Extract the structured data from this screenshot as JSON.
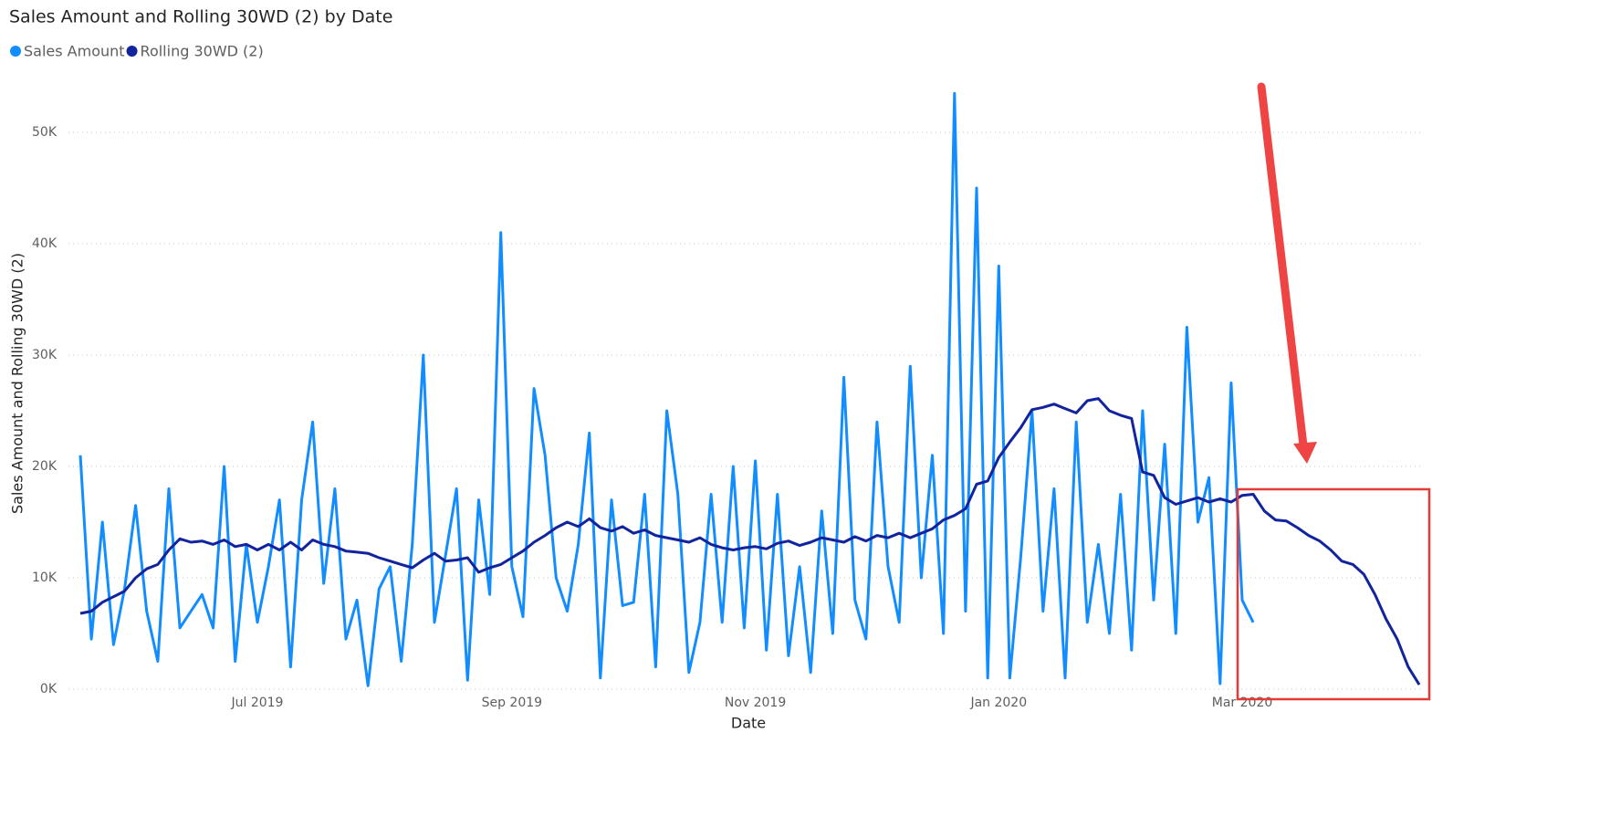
{
  "chart_data": {
    "type": "line",
    "title": "Sales Amount and Rolling 30WD (2) by Date",
    "x_label": "Date",
    "y_label": "Sales Amount and Rolling 30WD (2)",
    "categories": [
      null,
      null,
      null,
      null,
      null,
      null,
      null,
      null,
      null,
      null,
      null,
      null,
      null,
      null,
      null,
      null,
      "Jul 2019",
      null,
      null,
      null,
      null,
      null,
      null,
      null,
      null,
      null,
      null,
      null,
      null,
      null,
      null,
      null,
      null,
      null,
      null,
      null,
      null,
      null,
      null,
      "Sep 2019",
      null,
      null,
      null,
      null,
      null,
      null,
      null,
      null,
      null,
      null,
      null,
      null,
      null,
      null,
      null,
      null,
      null,
      null,
      null,
      null,
      null,
      "Nov 2019",
      null,
      null,
      null,
      null,
      null,
      null,
      null,
      null,
      null,
      null,
      null,
      null,
      null,
      null,
      null,
      null,
      null,
      null,
      null,
      null,
      null,
      "Jan 2020",
      null,
      null,
      null,
      null,
      null,
      null,
      null,
      null,
      null,
      null,
      null,
      null,
      null,
      null,
      null,
      null,
      null,
      null,
      null,
      null,
      null,
      "Mar 2020",
      null,
      null,
      null,
      null,
      null,
      null,
      null,
      null,
      null,
      null,
      null,
      null,
      null,
      null,
      null,
      null
    ],
    "series": [
      {
        "name": "Sales Amount",
        "color": "#118DFF",
        "values": [
          21000,
          4500,
          15000,
          4000,
          9000,
          16500,
          7000,
          2500,
          18000,
          5500,
          7000,
          8500,
          5500,
          20000,
          2500,
          13000,
          6000,
          11000,
          17000,
          2000,
          17000,
          24000,
          9500,
          18000,
          4500,
          8000,
          300,
          9000,
          11000,
          2500,
          13000,
          30000,
          6000,
          12000,
          18000,
          800,
          17000,
          8500,
          41000,
          11000,
          6500,
          27000,
          21000,
          10000,
          7000,
          13000,
          23000,
          1000,
          17000,
          7500,
          7800,
          17500,
          2000,
          25000,
          17500,
          1500,
          6000,
          17500,
          6000,
          20000,
          5500,
          20500,
          3500,
          17500,
          3000,
          11000,
          1500,
          16000,
          5000,
          28000,
          8000,
          4500,
          24000,
          11000,
          6000,
          29000,
          10000,
          21000,
          5000,
          53500,
          7000,
          45000,
          1000,
          38000,
          1000,
          12000,
          25000,
          7000,
          18000,
          1000,
          24000,
          6000,
          13000,
          5000,
          17500,
          3500,
          25000,
          8000,
          22000,
          5000,
          32500,
          15000,
          19000,
          500,
          27500,
          8000,
          6000,
          null,
          null,
          null,
          null,
          null,
          null,
          null,
          null,
          null,
          null,
          null,
          null,
          null,
          null,
          null
        ]
      },
      {
        "name": "Rolling 30WD (2)",
        "color": "#12239E",
        "values": [
          6800,
          7000,
          7800,
          8300,
          8800,
          10000,
          10800,
          11200,
          12500,
          13500,
          13200,
          13300,
          13000,
          13400,
          12800,
          13000,
          12500,
          13000,
          12500,
          13200,
          12500,
          13400,
          13000,
          12800,
          12400,
          12300,
          12200,
          11800,
          11500,
          11200,
          10900,
          11600,
          12200,
          11500,
          11600,
          11800,
          10500,
          10900,
          11200,
          11800,
          12400,
          13200,
          13800,
          14500,
          15000,
          14600,
          15300,
          14500,
          14200,
          14600,
          14000,
          14300,
          13800,
          13600,
          13400,
          13200,
          13600,
          13000,
          12700,
          12500,
          12700,
          12800,
          12600,
          13100,
          13300,
          12900,
          13200,
          13600,
          13400,
          13200,
          13700,
          13300,
          13800,
          13600,
          14000,
          13600,
          14000,
          14400,
          15200,
          15600,
          16200,
          18400,
          18700,
          20800,
          22200,
          23500,
          25100,
          25300,
          25600,
          25200,
          24800,
          25900,
          26100,
          25000,
          24600,
          24300,
          19500,
          19200,
          17200,
          16600,
          16900,
          17200,
          16800,
          17100,
          16800,
          17400,
          17500,
          16000,
          15200,
          15100,
          14500,
          13800,
          13300,
          12500,
          11500,
          11200,
          10300,
          8500,
          6300,
          4500,
          2000,
          400
        ]
      }
    ],
    "ylim": [
      0,
      55000
    ],
    "yticks": [
      {
        "value": 0,
        "label": "0K"
      },
      {
        "value": 10000,
        "label": "10K"
      },
      {
        "value": 20000,
        "label": "20K"
      },
      {
        "value": 30000,
        "label": "30K"
      },
      {
        "value": 40000,
        "label": "40K"
      },
      {
        "value": 50000,
        "label": "50K"
      }
    ],
    "grid": true
  }
}
